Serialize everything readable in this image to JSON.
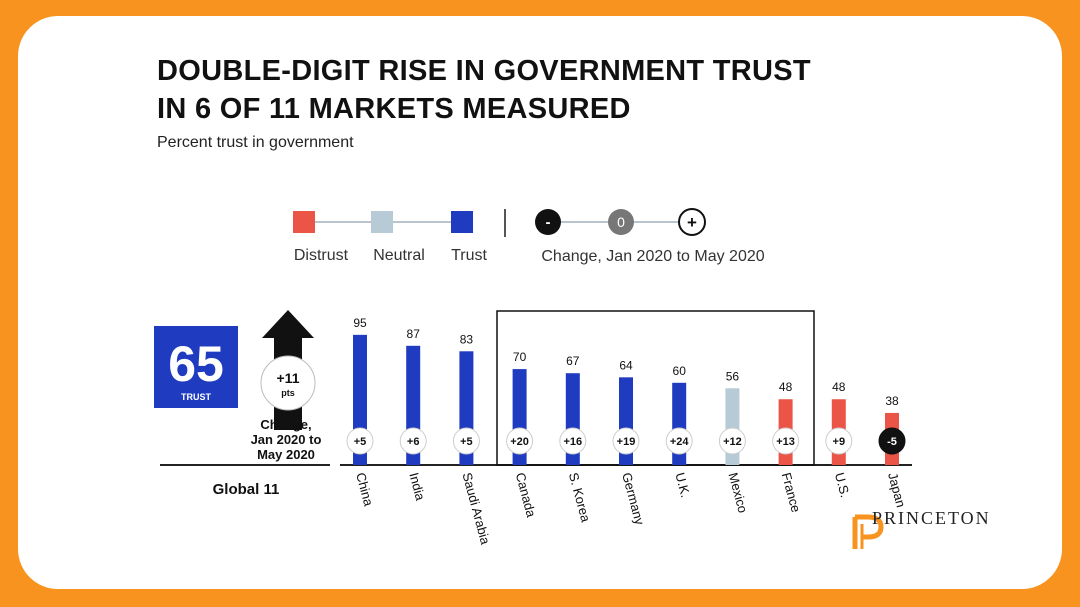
{
  "title_lines": [
    "DOUBLE-DIGIT RISE IN GOVERNMENT TRUST",
    "IN 6 OF 11 MARKETS MEASURED"
  ],
  "subtitle": "Percent trust in government",
  "legend": {
    "distrust": "Distrust",
    "neutral": "Neutral",
    "trust": "Trust",
    "change_label": "Change, Jan 2020 to May 2020",
    "minus": "-",
    "zero": "0",
    "plus": "+"
  },
  "global": {
    "value": "65",
    "value_label": "TRUST",
    "change": "+11",
    "change_unit": "pts",
    "change_caption": [
      "Change,",
      "Jan 2020 to",
      "May 2020"
    ],
    "label": "Global 11"
  },
  "colors": {
    "trust": "#1f3bbf",
    "neutral": "#b7cbd6",
    "distrust": "#ea5548",
    "frame": "#f7931e",
    "brand": "#f7931e"
  },
  "brand": "PRINCETON",
  "chart_data": {
    "type": "bar",
    "title": "DOUBLE-DIGIT RISE IN GOVERNMENT TRUST IN 6 OF 11 MARKETS MEASURED",
    "subtitle": "Percent trust in government",
    "categories": [
      "China",
      "India",
      "Saudi Arabia",
      "Canada",
      "S. Korea",
      "Germany",
      "U.K.",
      "Mexico",
      "France",
      "U.S.",
      "Japan"
    ],
    "values": [
      95,
      87,
      83,
      70,
      67,
      64,
      60,
      56,
      48,
      48,
      38
    ],
    "changes": [
      "+5",
      "+6",
      "+5",
      "+20",
      "+16",
      "+19",
      "+24",
      "+12",
      "+13",
      "+9",
      "-5"
    ],
    "levels": [
      "trust",
      "trust",
      "trust",
      "trust",
      "trust",
      "trust",
      "trust",
      "neutral",
      "distrust",
      "distrust",
      "distrust"
    ],
    "highlighted_markets": [
      "Canada",
      "S. Korea",
      "Germany",
      "U.K.",
      "Mexico",
      "France"
    ],
    "ylim": [
      0,
      100
    ],
    "grid": false,
    "legend_position": "top"
  }
}
